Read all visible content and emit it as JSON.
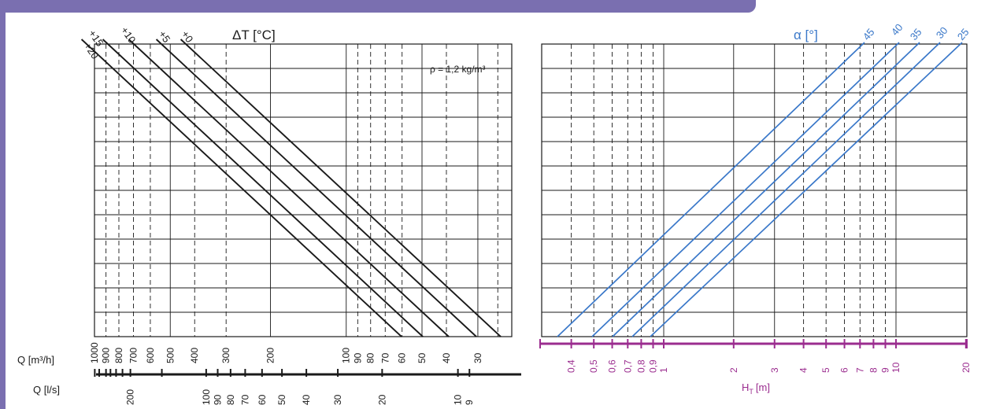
{
  "chart_data": [
    {
      "type": "line",
      "title": "ΔT [°C]",
      "annotation": "ρ = 1,2 kg/m³",
      "series": [
        {
          "name": "+20",
          "points": [
            [
              1000,
              7.5
            ],
            [
              10,
              0
            ]
          ]
        },
        {
          "name": "+15",
          "points": [
            [
              1000,
              8.5
            ],
            [
              10,
              1
            ]
          ]
        },
        {
          "name": "+10",
          "points": [
            [
              1000,
              10
            ],
            [
              10,
              2.5
            ]
          ]
        },
        {
          "name": "+5",
          "points": [
            [
              1000,
              11.5
            ],
            [
              10,
              4
            ]
          ]
        },
        {
          "name": "+0",
          "points": [
            [
              1000,
              12.8
            ],
            [
              10,
              5.3
            ]
          ]
        }
      ],
      "x_axes": [
        {
          "label": "Q [m³/h]",
          "ticks": [
            "1000",
            "900",
            "800",
            "700",
            "600",
            "500",
            "400",
            "300",
            "200",
            "100",
            "90",
            "80",
            "70",
            "60",
            "50",
            "40",
            "30"
          ]
        },
        {
          "label": "Q [l/s]",
          "ticks": [
            "200",
            "100",
            "90",
            "80",
            "70",
            "60",
            "50",
            "40",
            "30",
            "20",
            "10",
            "9"
          ]
        }
      ],
      "scale": "log",
      "grid": true
    },
    {
      "type": "line",
      "legend_title": "α [°]",
      "series": [
        {
          "name": "45",
          "points": [
            [
              0.33,
              0
            ],
            [
              6.5,
              13
            ]
          ]
        },
        {
          "name": "40",
          "points": [
            [
              0.5,
              0
            ],
            [
              10,
              13
            ]
          ]
        },
        {
          "name": "35",
          "points": [
            [
              0.6,
              0
            ],
            [
              12,
              13
            ]
          ]
        },
        {
          "name": "30",
          "points": [
            [
              0.75,
              0
            ],
            [
              15,
              13
            ]
          ]
        },
        {
          "name": "25",
          "points": [
            [
              0.9,
              0
            ],
            [
              18,
              13
            ]
          ]
        }
      ],
      "x_axis": {
        "label": "H_T [m]",
        "label_main": "H",
        "label_sub": "T",
        "label_unit": "[m]",
        "ticks": [
          "0,4",
          "0,5",
          "0,6",
          "0,7",
          "0,8",
          "0,9",
          "1",
          "2",
          "3",
          "4",
          "5",
          "6",
          "7",
          "8",
          "9",
          "10",
          "20"
        ]
      },
      "scale": "log",
      "grid": true
    }
  ],
  "colors": {
    "frame": "#7a6fb0",
    "line": "#1a1a1a",
    "blue": "#3a78c9",
    "magenta": "#9b2d8f"
  }
}
